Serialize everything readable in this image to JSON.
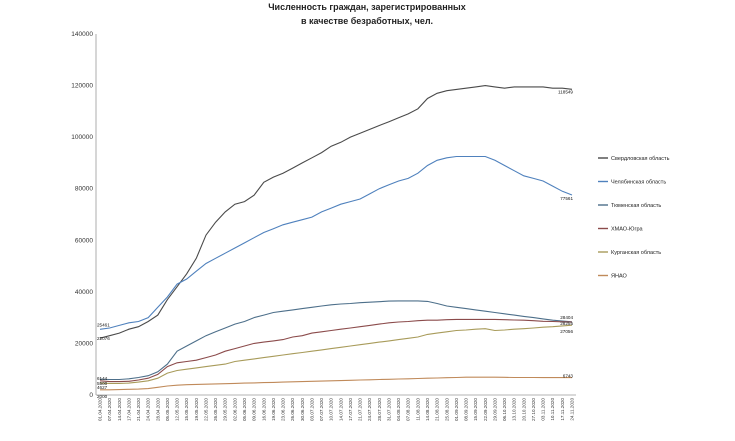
{
  "chart_data": {
    "type": "line",
    "title": [
      "Численность граждан, зарегистрированных",
      "в качестве безработных, чел."
    ],
    "ylim": [
      0,
      140000
    ],
    "yticks": [
      "0",
      "20000",
      "40000",
      "60000",
      "80000",
      "100000",
      "120000",
      "140000"
    ],
    "grid": false,
    "legend_position": "right",
    "x": [
      "01.04.2020",
      "07.04.2020",
      "14.04.2020",
      "17.04.2020",
      "21.04.2020",
      "24.04.2020",
      "28.04.2020",
      "05.05.2020",
      "12.05.2020",
      "15.05.2020",
      "19.05.2020",
      "22.05.2020",
      "26.05.2020",
      "29.05.2020",
      "02.06.2020",
      "05.06.2020",
      "09.06.2020",
      "16.06.2020",
      "19.06.2020",
      "23.06.2020",
      "26.06.2020",
      "30.06.2020",
      "03.07.2020",
      "07.07.2020",
      "10.07.2020",
      "14.07.2020",
      "17.07.2020",
      "21.07.2020",
      "24.07.2020",
      "28.07.2020",
      "31.07.2020",
      "04.08.2020",
      "07.08.2020",
      "11.08.2020",
      "14.08.2020",
      "21.08.2020",
      "25.08.2020",
      "01.09.2020",
      "08.09.2020",
      "15.09.2020",
      "22.09.2020",
      "29.09.2020",
      "06.10.2020",
      "13.10.2020",
      "20.10.2020",
      "27.10.2020",
      "03.11.2020",
      "10.11.2020",
      "17.11.2020",
      "24.11.2020"
    ],
    "series": [
      {
        "name": "Свердловская область",
        "color": "#4a4a4a",
        "end_label": "118549",
        "values": [
          22076,
          23000,
          24000,
          25500,
          26500,
          28500,
          31000,
          37000,
          42000,
          47000,
          53000,
          62000,
          67000,
          71000,
          74000,
          75000,
          77500,
          82500,
          84500,
          86000,
          88000,
          90000,
          92000,
          94000,
          96500,
          98000,
          100000,
          101500,
          103000,
          104500,
          106000,
          107500,
          109000,
          111000,
          115000,
          117000,
          118000,
          118500,
          119000,
          119500,
          120000,
          119500,
          119000,
          119500,
          119500,
          119500,
          119500,
          119000,
          119000,
          118549
        ]
      },
      {
        "name": "Челябинская область",
        "color": "#4f81bd",
        "end_label": "77561",
        "values": [
          25461,
          26000,
          27000,
          28000,
          28500,
          30000,
          34000,
          38000,
          43000,
          45000,
          48000,
          51000,
          53000,
          55000,
          57000,
          59000,
          61000,
          63000,
          64500,
          66000,
          67000,
          68000,
          69000,
          71000,
          72500,
          74000,
          75000,
          76000,
          78000,
          80000,
          81500,
          83000,
          84000,
          86000,
          89000,
          91000,
          92000,
          92500,
          92500,
          92500,
          92500,
          91000,
          89000,
          87000,
          85000,
          84000,
          83000,
          81000,
          79000,
          77561
        ]
      },
      {
        "name": "Тюменская область",
        "color": "#4d6f8a",
        "end_label": "28404",
        "values": [
          6144,
          6000,
          6000,
          6300,
          6800,
          7500,
          9000,
          12000,
          17000,
          19000,
          21000,
          23000,
          24500,
          26000,
          27500,
          28500,
          30000,
          31000,
          32000,
          32500,
          33000,
          33500,
          34000,
          34500,
          35000,
          35300,
          35500,
          35800,
          36000,
          36200,
          36400,
          36500,
          36500,
          36500,
          36300,
          35500,
          34500,
          34000,
          33500,
          33000,
          32500,
          32000,
          31500,
          31000,
          30500,
          30000,
          29500,
          29000,
          28700,
          28404
        ]
      },
      {
        "name": "ХМАО-Югра",
        "color": "#8b4b4b",
        "end_label": "28255",
        "values": [
          5500,
          5200,
          5200,
          5300,
          5800,
          6500,
          8000,
          11000,
          12500,
          13000,
          13500,
          14500,
          15500,
          17000,
          18000,
          19000,
          20000,
          20500,
          21000,
          21500,
          22500,
          23000,
          24000,
          24500,
          25000,
          25500,
          26000,
          26500,
          27000,
          27500,
          28000,
          28300,
          28500,
          28800,
          29000,
          29000,
          29200,
          29300,
          29300,
          29300,
          29300,
          29300,
          29200,
          29100,
          29000,
          28800,
          28600,
          28500,
          28400,
          28255
        ]
      },
      {
        "name": "Курганская область",
        "color": "#a89b5a",
        "end_label": "27056",
        "values": [
          4627,
          4500,
          4500,
          4600,
          5000,
          5500,
          6500,
          8500,
          9500,
          10000,
          10500,
          11000,
          11500,
          12000,
          13000,
          13500,
          14000,
          14500,
          15000,
          15500,
          16000,
          16500,
          17000,
          17500,
          18000,
          18500,
          19000,
          19500,
          20000,
          20500,
          21000,
          21500,
          22000,
          22500,
          23500,
          24000,
          24500,
          25000,
          25200,
          25500,
          25700,
          25000,
          25200,
          25500,
          25700,
          26000,
          26300,
          26500,
          26800,
          27056
        ]
      },
      {
        "name": "ЯНАО",
        "color": "#c08a5a",
        "end_label": "6743",
        "values": [
          2000,
          2000,
          2100,
          2200,
          2300,
          2500,
          3000,
          3500,
          3800,
          4000,
          4100,
          4200,
          4300,
          4400,
          4500,
          4600,
          4700,
          4800,
          4900,
          5000,
          5100,
          5200,
          5300,
          5400,
          5500,
          5600,
          5700,
          5800,
          5900,
          6000,
          6100,
          6200,
          6300,
          6400,
          6500,
          6600,
          6700,
          6800,
          6900,
          6900,
          6900,
          6900,
          6850,
          6800,
          6800,
          6800,
          6750,
          6750,
          6750,
          6743
        ]
      }
    ]
  }
}
